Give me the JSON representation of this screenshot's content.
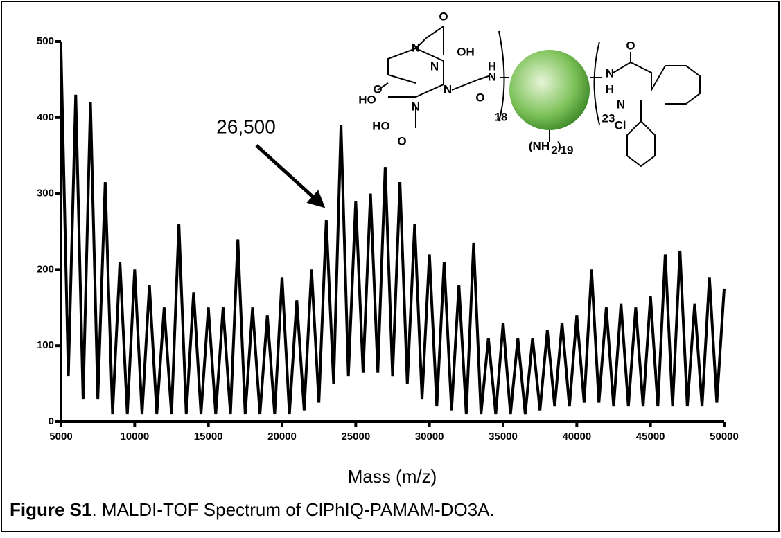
{
  "chart_data": {
    "type": "line",
    "x": [
      5000,
      5500,
      6000,
      6500,
      7000,
      7500,
      8000,
      8500,
      9000,
      9500,
      10000,
      10500,
      11000,
      11500,
      12000,
      12500,
      13000,
      13500,
      14000,
      14500,
      15000,
      15500,
      16000,
      16500,
      17000,
      17500,
      18000,
      18500,
      19000,
      19500,
      20000,
      20500,
      21000,
      21500,
      22000,
      22500,
      23000,
      23500,
      24000,
      24500,
      25000,
      25500,
      26000,
      26500,
      27000,
      27500,
      28000,
      28500,
      29000,
      29500,
      30000,
      30500,
      31000,
      31500,
      32000,
      32500,
      33000,
      33500,
      34000,
      34500,
      35000,
      35500,
      36000,
      36500,
      37000,
      37500,
      38000,
      38500,
      39000,
      39500,
      40000,
      40500,
      41000,
      41500,
      42000,
      42500,
      43000,
      43500,
      44000,
      44500,
      45000,
      45500,
      46000,
      46500,
      47000,
      47500,
      48000,
      48500,
      49000,
      49500,
      50000
    ],
    "series": [
      {
        "color": "#000000",
        "values": [
          490,
          60,
          430,
          30,
          420,
          30,
          315,
          10,
          210,
          10,
          200,
          10,
          180,
          10,
          150,
          10,
          260,
          10,
          170,
          10,
          150,
          10,
          150,
          10,
          240,
          10,
          150,
          10,
          140,
          10,
          190,
          10,
          160,
          15,
          200,
          25,
          265,
          50,
          390,
          60,
          290,
          65,
          300,
          65,
          335,
          60,
          315,
          50,
          260,
          30,
          220,
          20,
          210,
          15,
          180,
          10,
          235,
          10,
          110,
          10,
          130,
          10,
          110,
          10,
          110,
          15,
          120,
          20,
          130,
          20,
          140,
          25,
          200,
          25,
          150,
          20,
          155,
          20,
          150,
          20,
          165,
          20,
          220,
          20,
          225,
          20,
          155,
          20,
          190,
          25,
          175
        ]
      }
    ],
    "xlim": [
      5000,
      50000
    ],
    "ylim": [
      0,
      500
    ],
    "xticks": [
      5000,
      10000,
      15000,
      20000,
      25000,
      30000,
      35000,
      40000,
      45000,
      50000
    ],
    "yticks": [
      0,
      100,
      200,
      300,
      400,
      500
    ],
    "xlabel": "Mass (m/z)",
    "annotation": "26,500",
    "caption_label": "Figure S1",
    "caption_text": ".  MALDI-TOF Spectrum of ClPhIQ-PAMAM-DO3A.",
    "structure_labels": [
      "OH",
      "O",
      "HO",
      "O",
      "HO",
      "O",
      "N",
      "N",
      "N",
      "N",
      "H",
      "N",
      "O",
      "18",
      "(NH",
      "2",
      ")",
      "19",
      "O",
      "N",
      "H",
      "N",
      "23",
      "Cl"
    ]
  }
}
